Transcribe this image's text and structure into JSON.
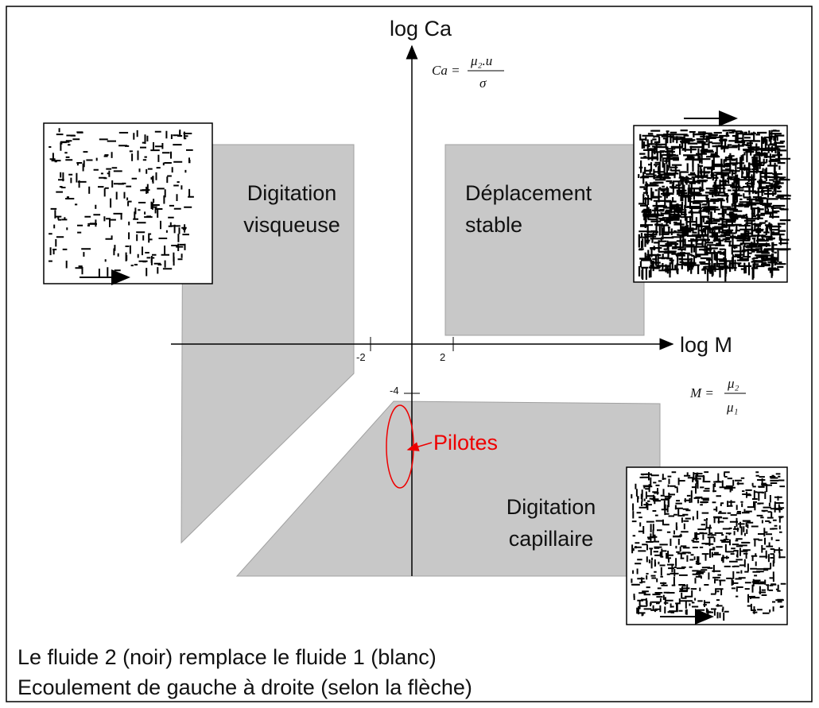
{
  "axes": {
    "y_label": "log Ca",
    "x_label": "log M",
    "x_ticks": [
      "-2",
      "2"
    ],
    "y_ticks": [
      "-4"
    ]
  },
  "formulas": {
    "ca": {
      "lhs": "Ca =",
      "num": "μ₂.u",
      "den": "σ"
    },
    "m": {
      "lhs": "M =",
      "num": "μ₂",
      "den": "μ₁"
    }
  },
  "regions": {
    "viscous": [
      "Digitation",
      "visqueuse"
    ],
    "stable": [
      "Déplacement",
      "stable"
    ],
    "capillary": [
      "Digitation",
      "capillaire"
    ]
  },
  "annotation": "Pilotes",
  "caption": [
    "Le fluide 2 (noir) remplace le fluide 1 (blanc)",
    "Ecoulement de gauche à droite (selon la flèche)"
  ]
}
